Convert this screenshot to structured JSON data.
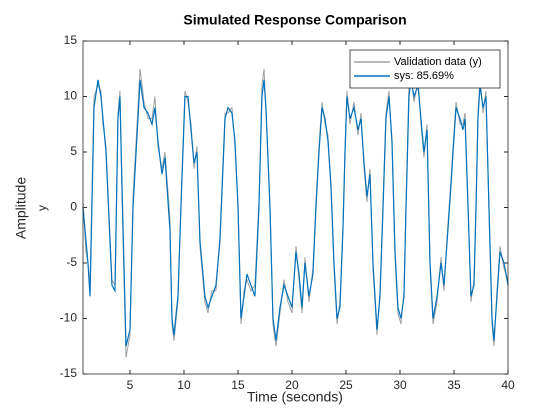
{
  "chart_data": {
    "type": "line",
    "title": "Simulated Response Comparison",
    "x_label": "Time (seconds)",
    "y_label": "Amplitude",
    "output_name": "y",
    "xlim": [
      0.65,
      40
    ],
    "xticks": [
      5,
      10,
      15,
      20,
      25,
      30,
      35,
      40
    ],
    "ylim": [
      -15,
      15
    ],
    "yticks": [
      -15,
      -10,
      -5,
      0,
      5,
      10,
      15
    ],
    "legend_position": "upper right",
    "x": [
      0.65,
      0.93,
      1.11,
      1.3,
      1.67,
      2.04,
      2.31,
      2.5,
      2.78,
      3.33,
      3.61,
      3.89,
      4.07,
      4.26,
      4.44,
      4.63,
      5.0,
      5.28,
      5.74,
      5.93,
      6.3,
      6.67,
      7.04,
      7.31,
      7.59,
      7.96,
      8.24,
      8.7,
      8.89,
      9.07,
      9.44,
      9.72,
      10.09,
      10.37,
      10.65,
      10.93,
      11.2,
      11.48,
      11.94,
      12.22,
      12.59,
      12.96,
      13.33,
      13.8,
      14.07,
      14.44,
      14.72,
      15.0,
      15.28,
      15.56,
      15.83,
      16.2,
      16.57,
      16.94,
      17.22,
      17.41,
      17.59,
      17.96,
      18.24,
      18.52,
      18.89,
      19.26,
      19.63,
      20.0,
      20.37,
      20.65,
      20.93,
      21.2,
      21.57,
      21.94,
      22.22,
      22.5,
      22.78,
      23.06,
      23.33,
      23.61,
      23.89,
      24.17,
      24.44,
      24.72,
      24.91,
      25.09,
      25.37,
      25.74,
      26.11,
      26.39,
      26.67,
      26.94,
      27.22,
      27.5,
      27.87,
      28.15,
      28.43,
      28.7,
      28.98,
      29.26,
      29.54,
      29.81,
      30.09,
      30.37,
      30.56,
      30.83,
      31.02,
      31.3,
      31.67,
      31.94,
      32.22,
      32.5,
      32.78,
      33.06,
      33.43,
      33.8,
      34.07,
      34.44,
      34.72,
      34.91,
      35.19,
      35.56,
      35.83,
      36.02,
      36.3,
      36.57,
      36.85,
      37.04,
      37.22,
      37.41,
      37.69,
      37.96,
      38.24,
      38.52,
      38.7,
      38.98,
      39.26,
      39.63,
      40.0
    ],
    "series": [
      {
        "name": "Validation data (y)",
        "color": "#a0a0a0",
        "values": [
          0.5,
          -4,
          -5,
          -7,
          10,
          11,
          10.5,
          7.5,
          5.5,
          -6.5,
          -7,
          8.5,
          10.5,
          1,
          -6,
          -13.5,
          -11.5,
          1,
          9,
          12.5,
          9.5,
          8,
          8,
          10,
          5.5,
          3.5,
          5,
          -1,
          -10.5,
          -12,
          -8.5,
          0.5,
          10.5,
          9.5,
          7.5,
          3.5,
          5.5,
          -3.5,
          -8.5,
          -9.5,
          -7.5,
          -7.5,
          -2.5,
          8.5,
          8.5,
          9,
          5.5,
          0.5,
          -10.5,
          -7.5,
          -6.5,
          -7.5,
          -7,
          0.5,
          11,
          12.5,
          8.5,
          0.5,
          -10.5,
          -12.5,
          -9.5,
          -6.5,
          -8.5,
          -9.5,
          -3.5,
          -6.5,
          -9.5,
          -4.5,
          -8.5,
          -5.5,
          0.5,
          5.5,
          9.5,
          7.5,
          6.5,
          1.5,
          -5.5,
          -10.5,
          -8.5,
          -1.5,
          5.5,
          10.5,
          7.5,
          9.5,
          6.5,
          8.5,
          3.5,
          0.5,
          3.5,
          -5.5,
          -11.5,
          -7.5,
          0.5,
          8.5,
          10.5,
          5.5,
          -4.5,
          -9.5,
          -10.5,
          -7.5,
          0.5,
          11,
          12,
          9.5,
          11.5,
          7.5,
          4.5,
          7.5,
          -5.5,
          -10.5,
          -8.5,
          -4.5,
          -7.5,
          -1.5,
          2.5,
          5.5,
          9.5,
          7.5,
          7.5,
          8.5,
          0.5,
          -8.5,
          -6.5,
          0.5,
          8.5,
          11.5,
          8.5,
          10.5,
          -0.5,
          -10.5,
          -12.5,
          -7.5,
          -3.5,
          -5.5,
          -6.5
        ]
      },
      {
        "name": "sys: 85.69%",
        "color": "#0072bd",
        "values": [
          0,
          -3,
          -5,
          -8,
          9,
          11.5,
          10,
          8,
          5,
          -7,
          -7.5,
          8,
          10,
          2,
          -5,
          -12.5,
          -11,
          0,
          8,
          11.5,
          9,
          8.5,
          7.5,
          9,
          6,
          3,
          4.5,
          -2,
          -10,
          -11.5,
          -8,
          0,
          10,
          10,
          7,
          4,
          5,
          -3,
          -8,
          -9,
          -8,
          -7,
          -3,
          8,
          9,
          8.5,
          6,
          0,
          -10,
          -8,
          -6,
          -7,
          -8,
          0,
          10,
          11.5,
          9,
          0,
          -10,
          -12,
          -9,
          -7,
          -8,
          -9,
          -4,
          -6,
          -9,
          -5,
          -8,
          -6,
          0,
          5,
          9,
          8,
          6,
          2,
          -5,
          -10,
          -9,
          -2,
          5,
          10,
          8,
          9,
          7,
          8,
          4,
          1,
          3,
          -5,
          -11,
          -8,
          0,
          8,
          10,
          6,
          -4,
          -9,
          -10,
          -8,
          0,
          10,
          11.5,
          10,
          11,
          8,
          5,
          7,
          -5,
          -10,
          -8,
          -5,
          -7,
          -2,
          2,
          5,
          9,
          8,
          7,
          8,
          0,
          -8,
          -7,
          0,
          8,
          11,
          9,
          10,
          0,
          -10,
          -12,
          -8,
          -4,
          -5,
          -7
        ]
      }
    ]
  }
}
